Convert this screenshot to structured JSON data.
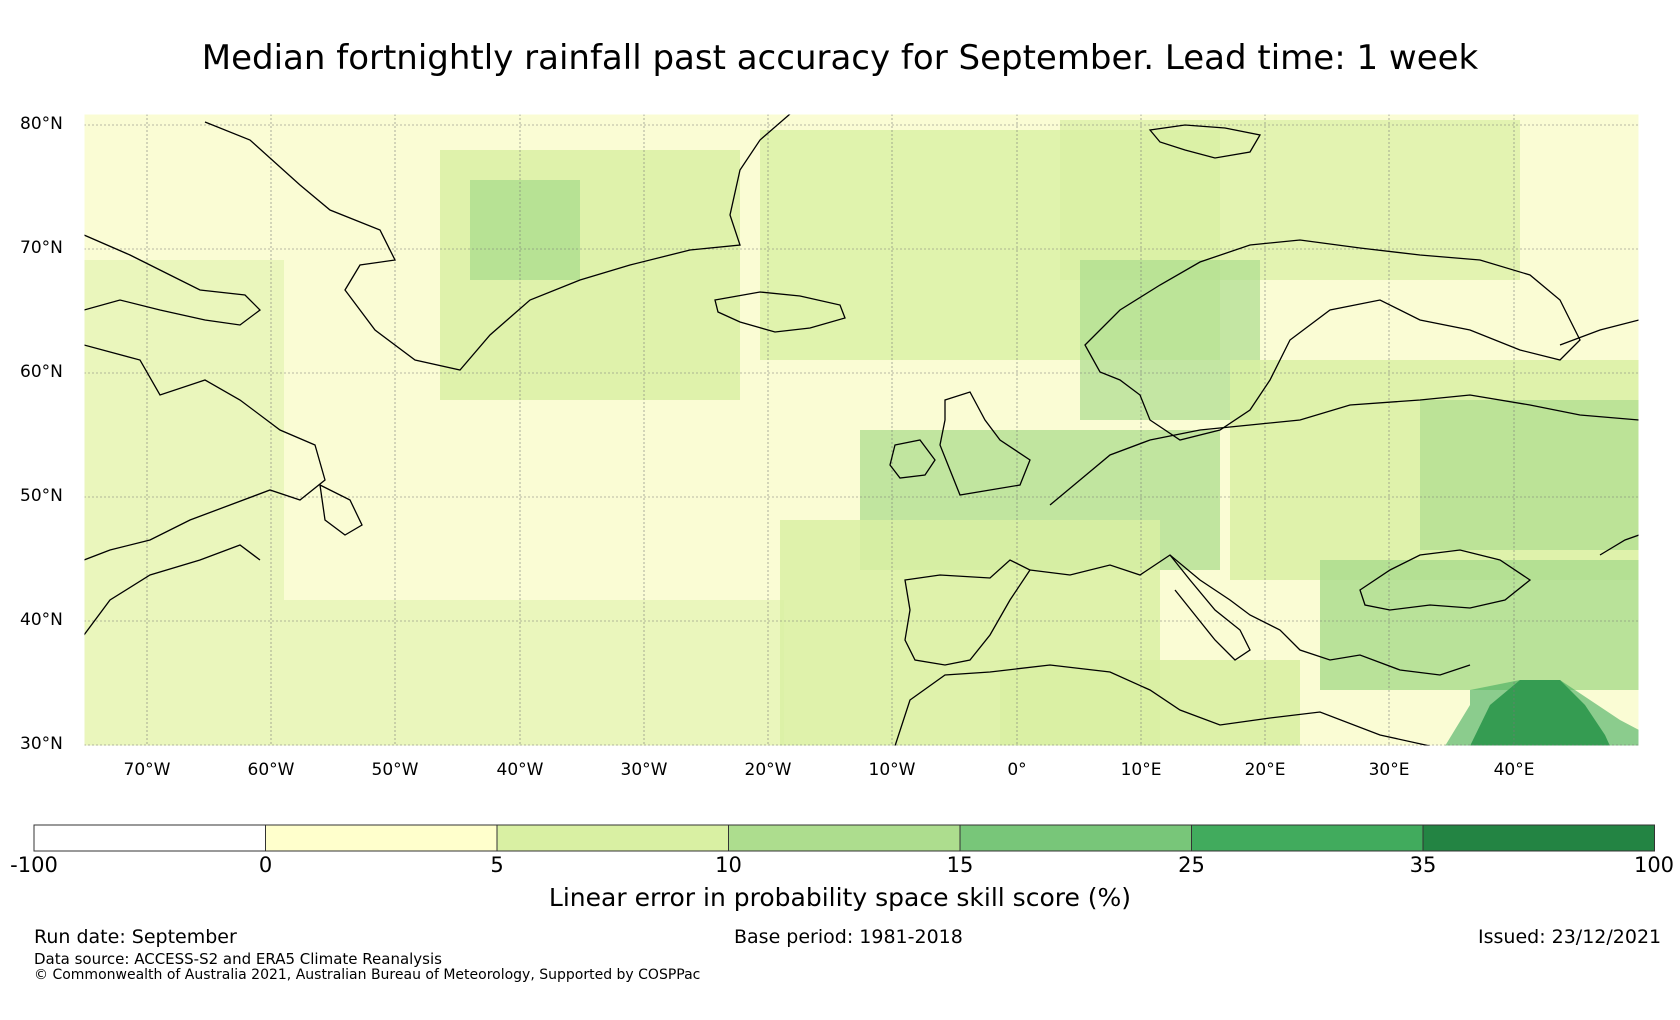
{
  "title": "Median fortnightly rainfall past accuracy for September. Lead time: 1 week",
  "map": {
    "lat_labels": [
      "80°N",
      "70°N",
      "60°N",
      "50°N",
      "40°N",
      "30°N"
    ],
    "lon_labels": [
      "70°W",
      "60°W",
      "50°W",
      "40°W",
      "30°W",
      "20°W",
      "10°W",
      "0°",
      "10°E",
      "20°E",
      "30°E",
      "40°E"
    ],
    "lon_range": [
      -75,
      50
    ],
    "lat_range": [
      30,
      81
    ]
  },
  "colorbar": {
    "ticks": [
      "-100",
      "0",
      "5",
      "10",
      "15",
      "25",
      "35",
      "100"
    ],
    "colors": [
      "#ffffff",
      "#ffffcc",
      "#d9f0a3",
      "#addd8e",
      "#78c679",
      "#41ab5d",
      "#238443"
    ],
    "label": "Linear error in probability space skill score (%)"
  },
  "footer": {
    "run_date": "Run date: September",
    "base_period": "Base period: 1981-2018",
    "issued": "Issued: 23/12/2021",
    "data_source": "Data source: ACCESS-S2 and ERA5 Climate Reanalysis",
    "copyright": "© Commonwealth of Australia 2021, Australian Bureau of Meteorology, Supported by COSPPac"
  }
}
